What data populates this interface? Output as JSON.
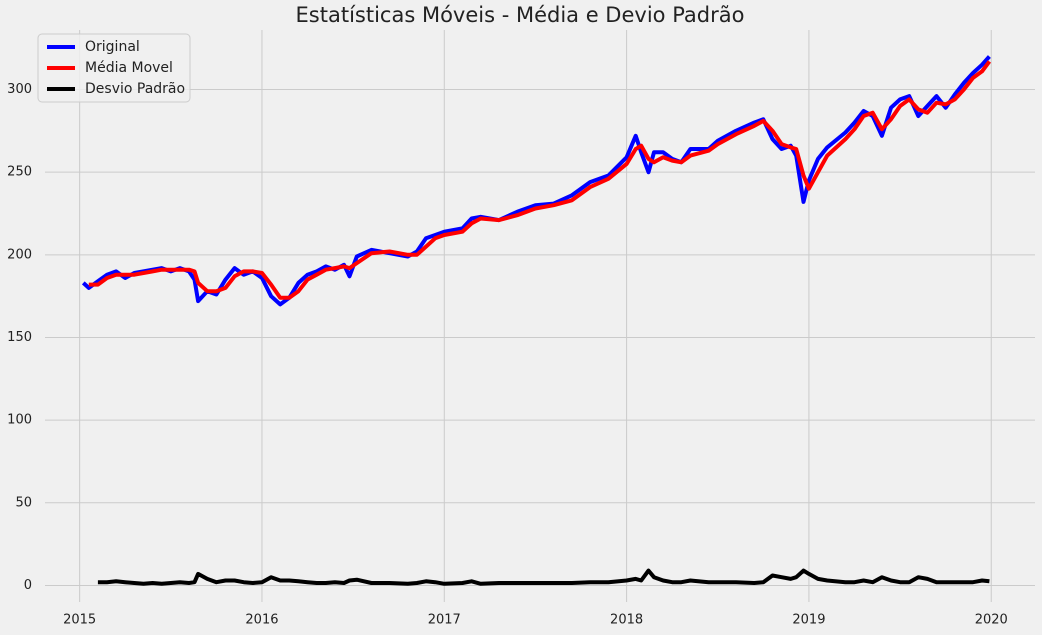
{
  "chart_data": {
    "type": "line",
    "title": "Estatísticas Móveis - Média e Devio Padrão",
    "x": [
      2015.02,
      2015.05,
      2015.1,
      2015.15,
      2015.2,
      2015.25,
      2015.3,
      2015.35,
      2015.4,
      2015.45,
      2015.5,
      2015.55,
      2015.6,
      2015.63,
      2015.65,
      2015.7,
      2015.75,
      2015.8,
      2015.85,
      2015.9,
      2015.95,
      2016.0,
      2016.05,
      2016.1,
      2016.15,
      2016.2,
      2016.25,
      2016.3,
      2016.35,
      2016.4,
      2016.45,
      2016.48,
      2016.52,
      2016.6,
      2016.7,
      2016.8,
      2016.85,
      2016.9,
      2016.95,
      2017.0,
      2017.1,
      2017.15,
      2017.2,
      2017.3,
      2017.4,
      2017.5,
      2017.6,
      2017.7,
      2017.8,
      2017.9,
      2018.0,
      2018.05,
      2018.08,
      2018.12,
      2018.15,
      2018.2,
      2018.25,
      2018.3,
      2018.35,
      2018.45,
      2018.5,
      2018.6,
      2018.7,
      2018.75,
      2018.8,
      2018.85,
      2018.9,
      2018.93,
      2018.97,
      2019.0,
      2019.05,
      2019.1,
      2019.2,
      2019.25,
      2019.3,
      2019.35,
      2019.4,
      2019.45,
      2019.5,
      2019.55,
      2019.6,
      2019.65,
      2019.7,
      2019.75,
      2019.8,
      2019.85,
      2019.9,
      2019.95,
      2019.99
    ],
    "series": [
      {
        "name": "Original",
        "color": "#0000ff",
        "values": [
          183,
          180,
          184,
          188,
          190,
          186,
          189,
          190,
          191,
          192,
          190,
          192,
          190,
          185,
          172,
          178,
          176,
          185,
          192,
          188,
          190,
          186,
          175,
          170,
          174,
          183,
          188,
          190,
          193,
          191,
          194,
          187,
          199,
          203,
          201,
          199,
          202,
          210,
          212,
          214,
          216,
          222,
          223,
          221,
          226,
          230,
          231,
          236,
          244,
          248,
          259,
          272,
          262,
          250,
          262,
          262,
          258,
          256,
          264,
          264,
          269,
          275,
          280,
          282,
          270,
          264,
          266,
          260,
          232,
          245,
          258,
          265,
          274,
          280,
          287,
          284,
          272,
          289,
          294,
          296,
          284,
          290,
          296,
          289,
          297,
          304,
          310,
          315,
          320
        ]
      },
      {
        "name": "Média Movel",
        "color": "#ff0000",
        "values": [
          null,
          182,
          182,
          186,
          188,
          188,
          188,
          189,
          190,
          191,
          191,
          191,
          191,
          190,
          183,
          178,
          178,
          180,
          187,
          190,
          190,
          189,
          182,
          174,
          174,
          178,
          185,
          188,
          191,
          192,
          193,
          192,
          195,
          201,
          202,
          200,
          200,
          205,
          210,
          212,
          214,
          219,
          222,
          221,
          224,
          228,
          230,
          233,
          241,
          246,
          255,
          264,
          266,
          258,
          256,
          259,
          257,
          256,
          260,
          263,
          267,
          273,
          278,
          281,
          275,
          267,
          265,
          264,
          248,
          240,
          250,
          260,
          270,
          276,
          284,
          286,
          276,
          282,
          290,
          294,
          288,
          286,
          292,
          291,
          294,
          300,
          307,
          311,
          317
        ]
      },
      {
        "name": "Desvio Padrão",
        "color": "#000000",
        "values": [
          null,
          null,
          2,
          2,
          2.5,
          2,
          1.5,
          1,
          1.5,
          1,
          1.5,
          2,
          1.5,
          2,
          7,
          4,
          2,
          3,
          3,
          2,
          1.5,
          2,
          5,
          3,
          3,
          2.5,
          2,
          1.5,
          1.5,
          2,
          1.5,
          3,
          3.5,
          1.5,
          1.5,
          1,
          1.5,
          2.5,
          2,
          1,
          1.5,
          2.5,
          1,
          1.5,
          1.5,
          1.5,
          1.5,
          1.5,
          2,
          2,
          3,
          4,
          3,
          9,
          5,
          3,
          2,
          2,
          3,
          2,
          2,
          2,
          1.5,
          2,
          6,
          5,
          4,
          5,
          9,
          7,
          4,
          3,
          2,
          2,
          3,
          2,
          5,
          3,
          2,
          2,
          5,
          4,
          2,
          2,
          2,
          2,
          2,
          3,
          2.5
        ]
      }
    ],
    "xlim": [
      2014.81,
      2020.24
    ],
    "xticks": [
      2015,
      2016,
      2017,
      2018,
      2019,
      2020
    ],
    "ylim": [
      -10,
      336
    ],
    "yticks": [
      0,
      50,
      100,
      150,
      200,
      250,
      300
    ],
    "grid": true,
    "legend": "upper left"
  }
}
